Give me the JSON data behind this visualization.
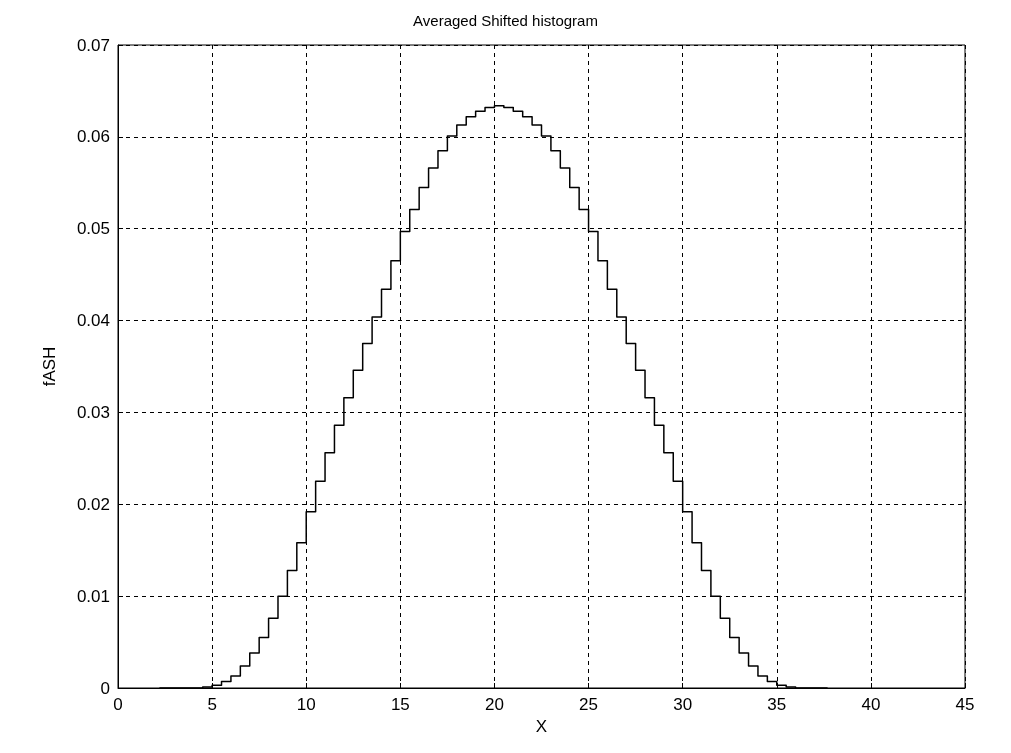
{
  "chart_data": {
    "type": "step",
    "title": "Averaged Shifted histogram",
    "xlabel": "X",
    "ylabel": "fASH",
    "x": [
      2.2,
      2.5,
      3,
      3.5,
      4,
      4.5,
      5,
      5.5,
      6,
      6.5,
      7,
      7.5,
      8,
      8.5,
      9,
      9.5,
      10,
      10.5,
      11,
      11.5,
      12,
      12.5,
      13,
      13.5,
      14,
      14.5,
      15,
      15.5,
      16,
      16.5,
      17,
      17.5,
      18,
      18.5,
      19,
      19.5,
      20,
      20.5,
      21,
      21.5,
      22,
      22.5,
      23,
      23.5,
      24,
      24.5,
      25,
      25.5,
      26,
      26.5,
      27,
      27.5,
      28,
      28.5,
      29,
      29.5,
      30,
      30.5,
      31,
      31.5,
      32,
      32.5,
      33,
      33.5,
      34,
      34.5,
      35,
      35.5,
      36,
      36.5,
      37,
      37.5,
      37.7
    ],
    "values": [
      0,
      0,
      0,
      0,
      0,
      0.0001,
      0.0003,
      0.0007,
      0.0013,
      0.0024,
      0.0038,
      0.0055,
      0.0076,
      0.01,
      0.0128,
      0.0158,
      0.0192,
      0.0225,
      0.0256,
      0.0286,
      0.0316,
      0.0346,
      0.0375,
      0.0404,
      0.0434,
      0.0465,
      0.0497,
      0.0521,
      0.0545,
      0.0566,
      0.0585,
      0.0601,
      0.0613,
      0.0622,
      0.0628,
      0.0632,
      0.0634,
      0.0632,
      0.0628,
      0.0622,
      0.0613,
      0.0601,
      0.0585,
      0.0566,
      0.0545,
      0.0521,
      0.0497,
      0.0465,
      0.0434,
      0.0404,
      0.0375,
      0.0346,
      0.0316,
      0.0286,
      0.0256,
      0.0225,
      0.0192,
      0.0158,
      0.0128,
      0.01,
      0.0076,
      0.0055,
      0.0038,
      0.0024,
      0.0013,
      0.0007,
      0.0003,
      0.0001,
      0,
      0,
      0,
      0,
      0
    ],
    "color": "#000000",
    "xlim": [
      0,
      45
    ],
    "xticks": [
      0,
      5,
      10,
      15,
      20,
      25,
      30,
      35,
      40,
      45
    ],
    "ylim": [
      0,
      0.07
    ],
    "yticks": [
      0,
      0.01,
      0.02,
      0.03,
      0.04,
      0.05,
      0.06,
      0.07
    ],
    "grid": true,
    "marker": "none",
    "line_style": "solid"
  }
}
